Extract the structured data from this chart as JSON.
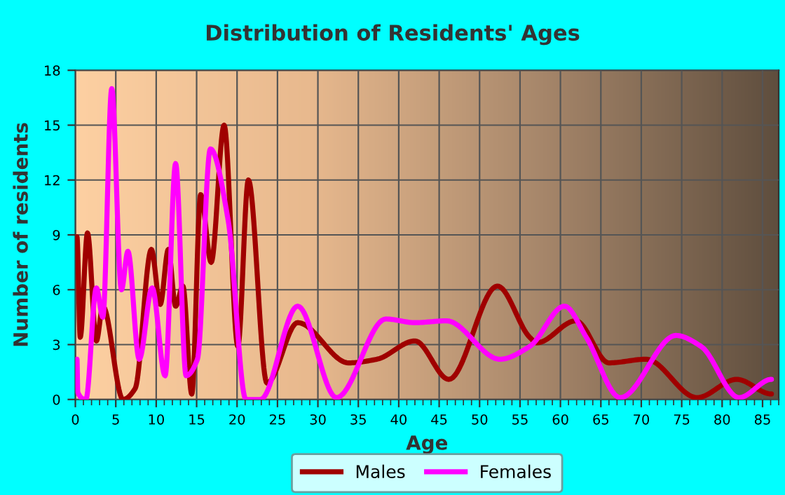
{
  "chart_data": {
    "type": "line",
    "title": "Distribution of Residents' Ages",
    "xlabel": "Age",
    "ylabel": "Number of residents",
    "xlim": [
      0,
      87
    ],
    "xticks": [
      0,
      5,
      10,
      15,
      20,
      25,
      30,
      35,
      40,
      45,
      50,
      55,
      60,
      65,
      70,
      75,
      80,
      85
    ],
    "ylim": [
      0,
      18
    ],
    "yticks": [
      0,
      3,
      6,
      9,
      12,
      15,
      18
    ],
    "grid": true,
    "legend": "bottom",
    "marker": "none",
    "line_style": "solid",
    "series": [
      {
        "name": "Males",
        "color": "#a00000",
        "x": [
          0.2,
          0.6,
          1.5,
          2.6,
          3.4,
          5.9,
          7.4,
          9.4,
          10.5,
          11.5,
          12.4,
          13.3,
          14.4,
          15.5,
          16.8,
          18.4,
          20.1,
          21.4,
          23.7,
          27.5,
          33.8,
          37.3,
          42.0,
          46.2,
          52.2,
          56.2,
          57.1,
          61.9,
          66.0,
          70.6,
          76.9,
          81.8,
          86.1
        ],
        "values": [
          8.9,
          3.4,
          9.1,
          3.2,
          5.1,
          0,
          0.6,
          8.2,
          5.2,
          8.2,
          5.1,
          6.2,
          0.3,
          11.2,
          7.5,
          15.0,
          2.9,
          12.0,
          0.9,
          4.2,
          2.0,
          2.2,
          3.2,
          1.1,
          6.2,
          3.4,
          3.1,
          4.3,
          2.0,
          2.2,
          0.1,
          1.1,
          0.3
        ]
      },
      {
        "name": "Females",
        "color": "#ff00ff",
        "x": [
          0.2,
          0.3,
          1.3,
          2.6,
          3.4,
          4.5,
          5.7,
          6.5,
          7.9,
          9.5,
          11.1,
          12.4,
          13.7,
          15.1,
          16.7,
          18.9,
          21.1,
          22.9,
          27.5,
          32.3,
          38.4,
          42.0,
          45.9,
          52.5,
          56.2,
          60.5,
          63.2,
          67.4,
          74.3,
          77.4,
          82.1,
          86.1
        ],
        "values": [
          2.2,
          0.4,
          0,
          6.1,
          4.5,
          17.0,
          6.0,
          8.1,
          2.2,
          6.1,
          1.3,
          12.9,
          1.3,
          2.2,
          13.7,
          9.8,
          0,
          0,
          5.1,
          0.1,
          4.4,
          4.2,
          4.3,
          2.2,
          2.9,
          5.1,
          3.4,
          0.1,
          3.5,
          2.9,
          0.1,
          1.1
        ]
      }
    ]
  }
}
